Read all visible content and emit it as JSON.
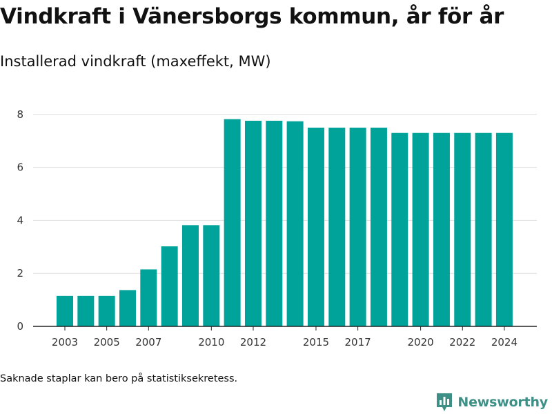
{
  "chart_data": {
    "type": "bar",
    "title": "Vindkraft i Vänersborgs kommun, år för år",
    "subtitle": "Installerad vindkraft (maxeffekt, MW)",
    "x": [
      2003,
      2004,
      2005,
      2006,
      2007,
      2008,
      2009,
      2010,
      2011,
      2012,
      2013,
      2014,
      2015,
      2016,
      2017,
      2018,
      2019,
      2020,
      2021,
      2022,
      2023,
      2024
    ],
    "values": [
      1.15,
      1.15,
      1.15,
      1.37,
      2.15,
      3.02,
      3.82,
      3.82,
      7.82,
      7.76,
      7.76,
      7.74,
      7.5,
      7.5,
      7.5,
      7.5,
      7.3,
      7.3,
      7.3,
      7.3,
      7.3,
      7.3
    ],
    "x_tick_labels": [
      "2003",
      "2005",
      "2007",
      "2010",
      "2012",
      "2015",
      "2017",
      "2020",
      "2022",
      "2024"
    ],
    "y_ticks": [
      0,
      2,
      4,
      6,
      8
    ],
    "ylim": [
      0,
      8.8
    ],
    "grid": true,
    "bar_color": "#00a39a"
  },
  "footnote": "Saknade staplar kan bero på statistiksekretess.",
  "brand": {
    "name": "Newsworthy",
    "color": "#3e8f86",
    "icon": "newsworthy-logo-icon"
  }
}
